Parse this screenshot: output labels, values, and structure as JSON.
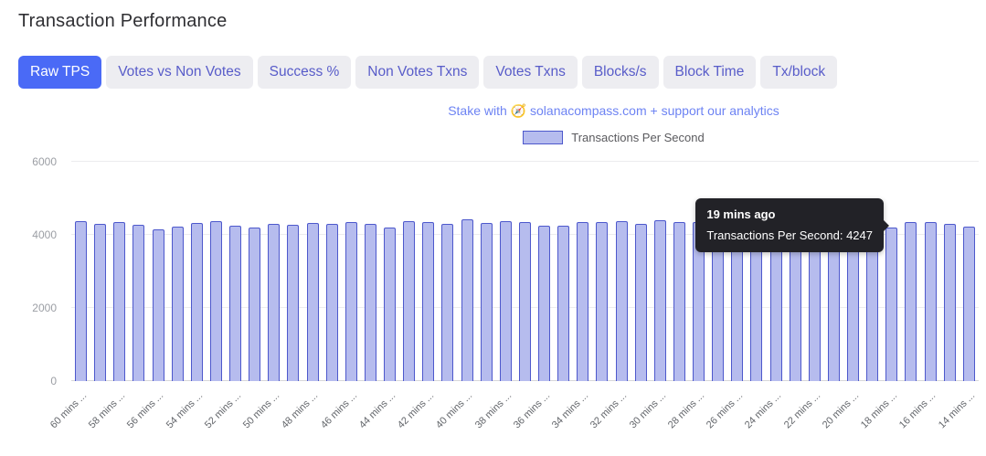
{
  "page": {
    "title": "Transaction Performance"
  },
  "tabs": [
    {
      "label": "Raw TPS",
      "active": true
    },
    {
      "label": "Votes vs Non Votes",
      "active": false
    },
    {
      "label": "Success %",
      "active": false
    },
    {
      "label": "Non Votes Txns",
      "active": false
    },
    {
      "label": "Votes Txns",
      "active": false
    },
    {
      "label": "Blocks/s",
      "active": false
    },
    {
      "label": "Block Time",
      "active": false
    },
    {
      "label": "Tx/block",
      "active": false
    }
  ],
  "promo": {
    "prefix": "Stake with",
    "icon": "🧭",
    "link_text": "solanacompass.com",
    "suffix": "+ support our analytics"
  },
  "legend": {
    "label": "Transactions Per Second"
  },
  "tooltip": {
    "title": "19 mins ago",
    "line": "Transactions Per Second: 4247"
  },
  "colors": {
    "accent": "#4a6af6",
    "tab_bg": "#ededf1",
    "tab_text": "#585cc9",
    "promo": "#6d83f3",
    "bar_fill": "#b6bcee",
    "bar_border": "#4d58cc",
    "tooltip_bg": "#222227"
  },
  "chart_data": {
    "type": "bar",
    "title": "",
    "xlabel": "",
    "ylabel": "",
    "ylim": [
      0,
      6000
    ],
    "yticks": [
      0,
      2000,
      4000,
      6000
    ],
    "grid": true,
    "legend_position": "top",
    "series": [
      {
        "name": "Transactions Per Second",
        "values": [
          4380,
          4310,
          4350,
          4280,
          4160,
          4230,
          4330,
          4380,
          4250,
          4200,
          4310,
          4270,
          4330,
          4300,
          4340,
          4290,
          4210,
          4370,
          4340,
          4310,
          4420,
          4330,
          4370,
          4350,
          4260,
          4250,
          4360,
          4340,
          4380,
          4300,
          4390,
          4350,
          4360,
          4350,
          4330,
          4280,
          4300,
          4340,
          4330,
          4310,
          4350,
          4247,
          4190,
          4350,
          4340,
          4290,
          4230
        ]
      }
    ],
    "tick_labels": [
      "60 mins ...",
      "",
      "58 mins ...",
      "",
      "56 mins ...",
      "",
      "54 mins ...",
      "",
      "52 mins ...",
      "",
      "50 mins ...",
      "",
      "48 mins ...",
      "",
      "46 mins ...",
      "",
      "44 mins ...",
      "",
      "42 mins ...",
      "",
      "40 mins ...",
      "",
      "38 mins ...",
      "",
      "36 mins ...",
      "",
      "34 mins ...",
      "",
      "32 mins ...",
      "",
      "30 mins ...",
      "",
      "28 mins ...",
      "",
      "26 mins ...",
      "",
      "24 mins ...",
      "",
      "22 mins ...",
      "",
      "20 mins ...",
      "",
      "18 mins ...",
      "",
      "16 mins ...",
      "",
      "14 mins ..."
    ],
    "highlighted_bar": {
      "label": "19 mins ago",
      "value": 4247
    }
  }
}
